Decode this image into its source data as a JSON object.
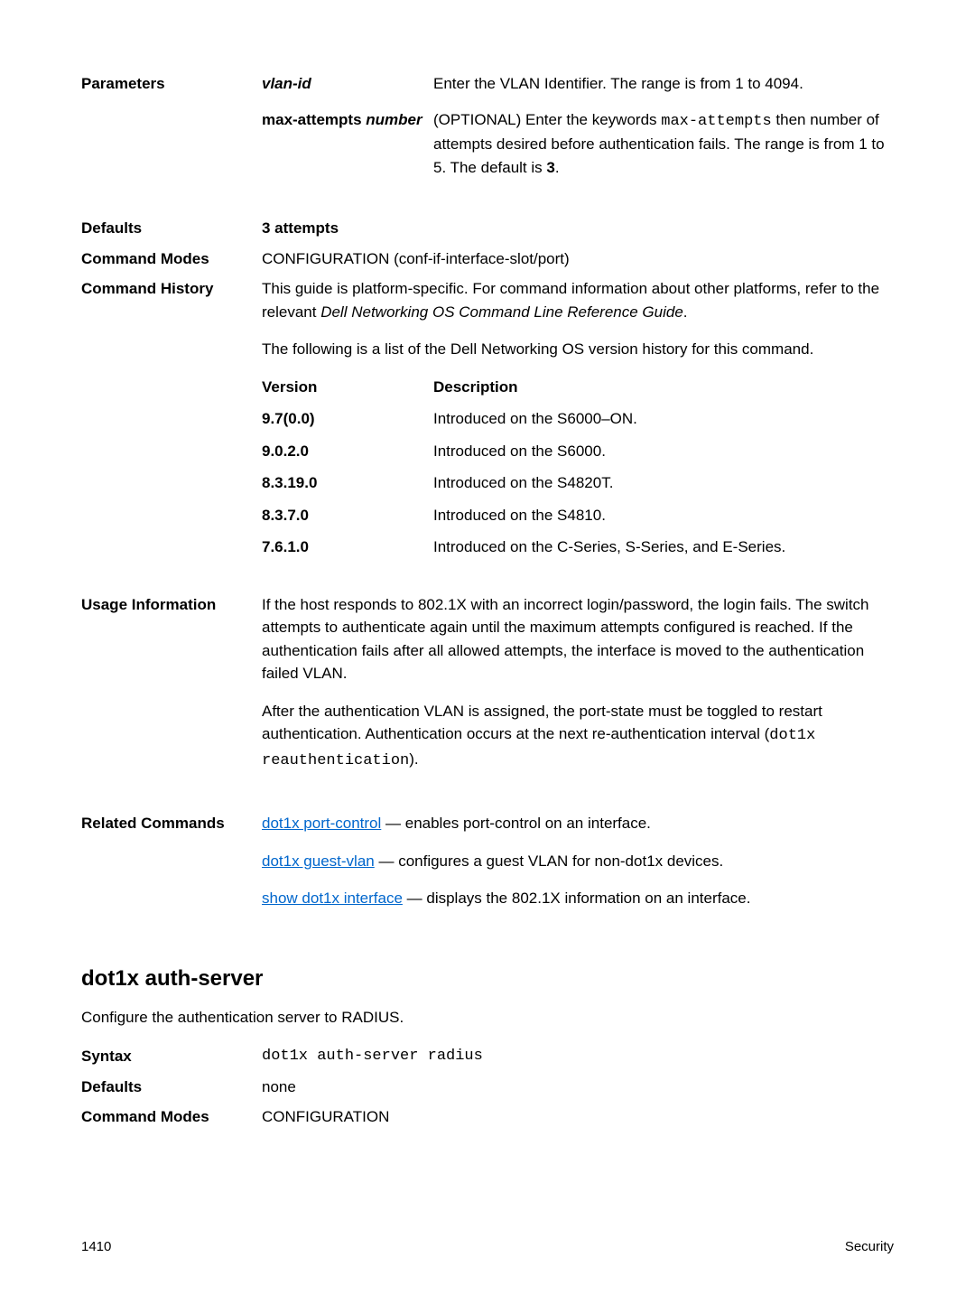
{
  "params_section": {
    "label": "Parameters",
    "items": [
      {
        "name": "vlan-id",
        "name_italic": true,
        "desc_parts": [
          {
            "text": "Enter the VLAN Identifier. The range is from 1 to 4094."
          }
        ]
      },
      {
        "name": "max-attempts number",
        "name_italic_part": "number",
        "desc_html": "(OPTIONAL) Enter the keywords <span class=\"mono\">max-attempts</span> then number of attempts desired before authentication fails. The range is from 1 to 5. The default is <span class=\"bold\">3</span>."
      }
    ]
  },
  "defaults": {
    "label": "Defaults",
    "value": "3 attempts"
  },
  "command_modes": {
    "label": "Command Modes",
    "value": "CONFIGURATION (conf-if-interface-slot/port)"
  },
  "command_history": {
    "label": "Command History",
    "intro_html": "This guide is platform-specific. For command information about other platforms, refer to the relevant <span class=\"italic\">Dell Networking OS Command Line Reference Guide</span>.",
    "intro2": "The following is a list of the Dell Networking OS version history for this command.",
    "header_version": "Version",
    "header_desc": "Description",
    "rows": [
      {
        "v": "9.7(0.0)",
        "d": "Introduced on the S6000–ON."
      },
      {
        "v": "9.0.2.0",
        "d": "Introduced on the S6000."
      },
      {
        "v": "8.3.19.0",
        "d": "Introduced on the S4820T."
      },
      {
        "v": "8.3.7.0",
        "d": "Introduced on the S4810."
      },
      {
        "v": "7.6.1.0",
        "d": "Introduced on the C-Series, S-Series, and E-Series."
      }
    ]
  },
  "usage": {
    "label": "Usage Information",
    "para1": "If the host responds to 802.1X with an incorrect login/password, the login fails. The switch attempts to authenticate again until the maximum attempts configured is reached. If the authentication fails after all allowed attempts, the interface is moved to the authentication failed VLAN.",
    "para2_html": "After the authentication VLAN is assigned, the port-state must be toggled to restart authentication. Authentication occurs at the next re-authentication interval (<span class=\"mono\">dot1x reauthentication</span>)."
  },
  "related": {
    "label": "Related Commands",
    "items": [
      {
        "link": "dot1x port-control",
        "rest": " — enables port-control on an interface."
      },
      {
        "link": "dot1x guest-vlan",
        "rest": " — configures a guest VLAN for non-dot1x devices."
      },
      {
        "link": "show dot1x interface",
        "rest": " — displays the 802.1X information on an interface."
      }
    ]
  },
  "auth_server": {
    "heading": "dot1x auth-server",
    "intro": "Configure the authentication server to RADIUS.",
    "syntax_label": "Syntax",
    "syntax_value": "dot1x auth-server radius",
    "defaults_label": "Defaults",
    "defaults_value": "none",
    "modes_label": "Command Modes",
    "modes_value": "CONFIGURATION"
  },
  "footer": {
    "page": "1410",
    "section": "Security"
  }
}
